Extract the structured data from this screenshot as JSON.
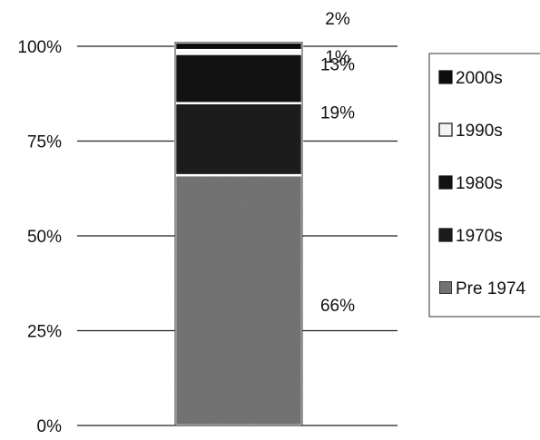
{
  "chart_data": {
    "type": "bar",
    "stacked": true,
    "percent": true,
    "categories": [
      ""
    ],
    "series": [
      {
        "name": "Pre 1974",
        "values": [
          66
        ],
        "label": "66%",
        "color": "#7a7a7a"
      },
      {
        "name": "1970s",
        "values": [
          19
        ],
        "label": "19%",
        "color": "#1c1c1c"
      },
      {
        "name": "1980s",
        "values": [
          13
        ],
        "label": "13%",
        "color": "#121212"
      },
      {
        "name": "1990s",
        "values": [
          1
        ],
        "label": "1%",
        "color": "#f4f4f4"
      },
      {
        "name": "2000s",
        "values": [
          2
        ],
        "label": "2%",
        "color": "#0c0c0c"
      }
    ],
    "y_ticks": [
      "0%",
      "25%",
      "50%",
      "75%",
      "100%"
    ],
    "ylim": [
      0,
      100
    ],
    "grid": true,
    "legend": {
      "position": "right",
      "order": [
        "2000s",
        "1990s",
        "1980s",
        "1970s",
        "Pre 1974"
      ]
    }
  }
}
